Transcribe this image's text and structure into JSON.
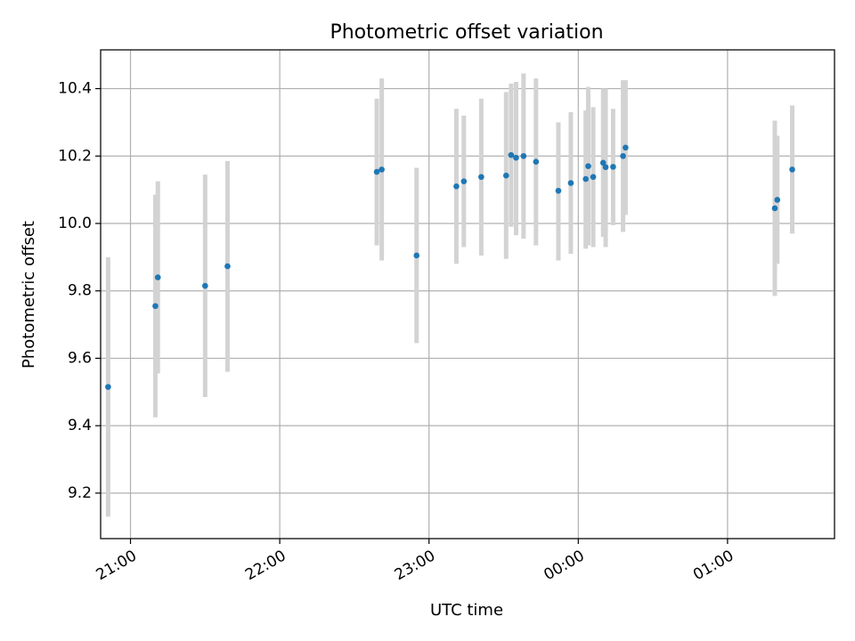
{
  "chart_data": {
    "type": "scatter",
    "title": "Photometric offset variation",
    "xlabel": "UTC time",
    "ylabel": "Photometric offset",
    "x_axis_kind": "time",
    "xlim": [
      "20:48",
      "01:43"
    ],
    "ylim": [
      9.065,
      10.515
    ],
    "x_ticks": [
      "21:00",
      "22:00",
      "23:00",
      "00:00",
      "01:00"
    ],
    "y_ticks": [
      "9.2",
      "9.4",
      "9.6",
      "9.8",
      "10.0",
      "10.2",
      "10.4"
    ],
    "grid": true,
    "colors": {
      "marker": "#1f77b4",
      "errorbar": "#d3d3d3",
      "grid": "#b0b0b0",
      "axes": "#000000"
    },
    "series": [
      {
        "points": [
          {
            "x": "20:51",
            "y": 9.515,
            "lo": 9.13,
            "hi": 9.9
          },
          {
            "x": "21:10",
            "y": 9.755,
            "lo": 9.425,
            "hi": 10.085
          },
          {
            "x": "21:11",
            "y": 9.84,
            "lo": 9.555,
            "hi": 10.125
          },
          {
            "x": "21:30",
            "y": 9.815,
            "lo": 9.485,
            "hi": 10.145
          },
          {
            "x": "21:39",
            "y": 9.873,
            "lo": 9.56,
            "hi": 10.185
          },
          {
            "x": "22:39",
            "y": 10.153,
            "lo": 9.935,
            "hi": 10.37
          },
          {
            "x": "22:41",
            "y": 10.16,
            "lo": 9.89,
            "hi": 10.43
          },
          {
            "x": "22:55",
            "y": 9.905,
            "lo": 9.645,
            "hi": 10.165
          },
          {
            "x": "23:11",
            "y": 10.11,
            "lo": 9.88,
            "hi": 10.34
          },
          {
            "x": "23:14",
            "y": 10.125,
            "lo": 9.93,
            "hi": 10.32
          },
          {
            "x": "23:21",
            "y": 10.138,
            "lo": 9.905,
            "hi": 10.37
          },
          {
            "x": "23:31",
            "y": 10.142,
            "lo": 9.895,
            "hi": 10.39
          },
          {
            "x": "23:33",
            "y": 10.203,
            "lo": 9.99,
            "hi": 10.415
          },
          {
            "x": "23:35",
            "y": 10.195,
            "lo": 9.965,
            "hi": 10.42
          },
          {
            "x": "23:38",
            "y": 10.2,
            "lo": 9.955,
            "hi": 10.445
          },
          {
            "x": "23:43",
            "y": 10.183,
            "lo": 9.935,
            "hi": 10.43
          },
          {
            "x": "23:52",
            "y": 10.097,
            "lo": 9.89,
            "hi": 10.3
          },
          {
            "x": "23:57",
            "y": 10.12,
            "lo": 9.91,
            "hi": 10.33
          },
          {
            "x": "00:03",
            "y": 10.132,
            "lo": 9.925,
            "hi": 10.335
          },
          {
            "x": "00:04",
            "y": 10.17,
            "lo": 9.935,
            "hi": 10.405
          },
          {
            "x": "00:06",
            "y": 10.138,
            "lo": 9.93,
            "hi": 10.345
          },
          {
            "x": "00:10",
            "y": 10.18,
            "lo": 9.96,
            "hi": 10.4
          },
          {
            "x": "00:11",
            "y": 10.167,
            "lo": 9.93,
            "hi": 10.4
          },
          {
            "x": "00:14",
            "y": 10.168,
            "lo": 9.995,
            "hi": 10.34
          },
          {
            "x": "00:18",
            "y": 10.2,
            "lo": 9.975,
            "hi": 10.425
          },
          {
            "x": "00:19",
            "y": 10.225,
            "lo": 10.025,
            "hi": 10.425
          },
          {
            "x": "01:19",
            "y": 10.045,
            "lo": 9.785,
            "hi": 10.305
          },
          {
            "x": "01:20",
            "y": 10.07,
            "lo": 9.88,
            "hi": 10.26
          },
          {
            "x": "01:26",
            "y": 10.16,
            "lo": 9.97,
            "hi": 10.35
          }
        ]
      }
    ]
  }
}
